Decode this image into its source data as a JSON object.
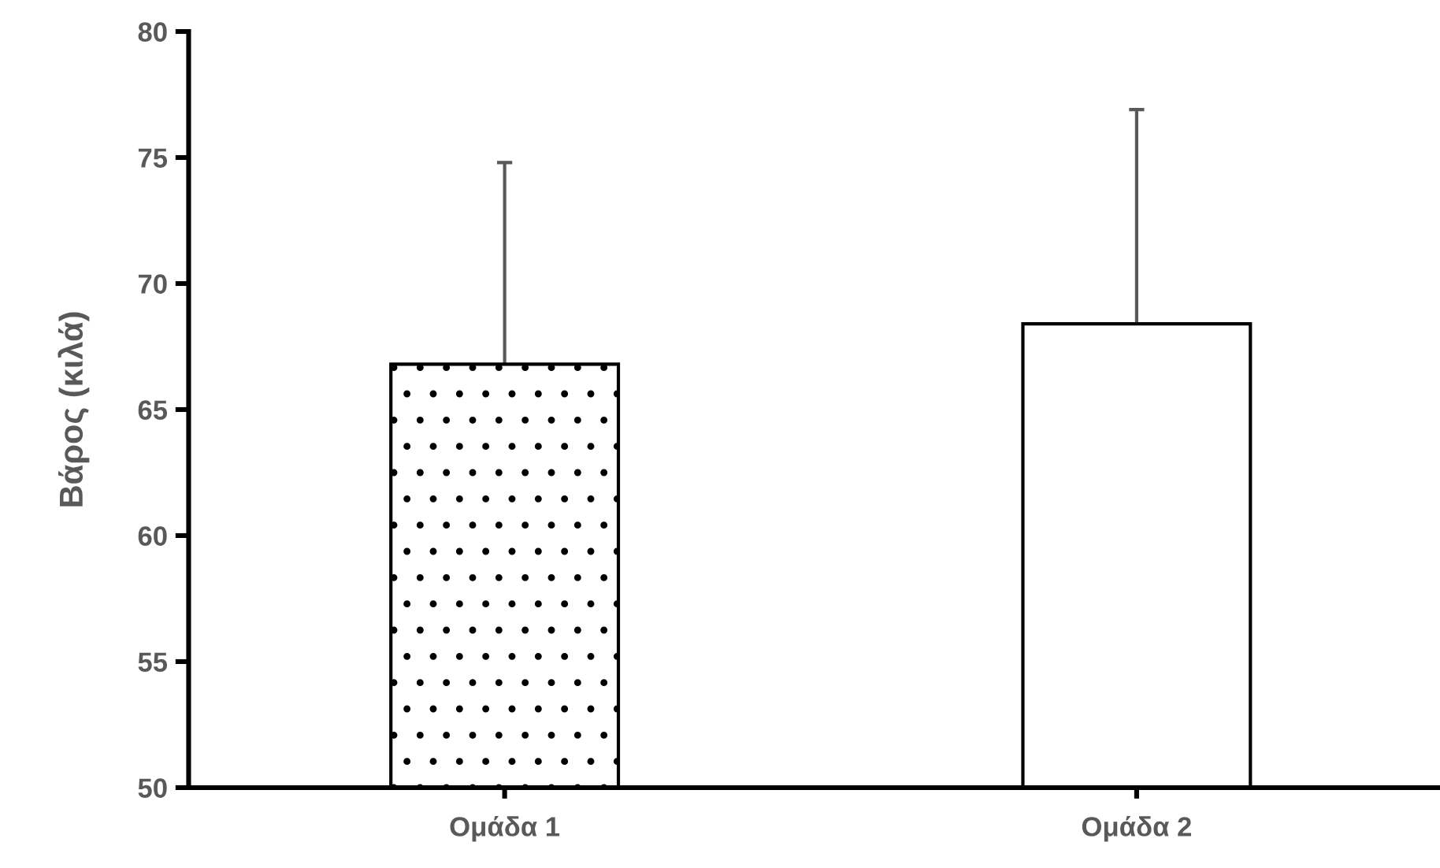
{
  "chart_data": {
    "type": "bar",
    "ylabel": "Βάρος (κιλά)",
    "categories": [
      "Ομάδα 1",
      "Ομάδα 2"
    ],
    "values": [
      66.8,
      68.4
    ],
    "colors": [
      "#ffffff",
      "#ffffff"
    ],
    "errors": [
      [
        66.8,
        74.8
      ],
      [
        68.4,
        76.9
      ]
    ],
    "ylim": [
      50,
      80
    ],
    "yticks": [
      50,
      55,
      60,
      65,
      70,
      75,
      80
    ],
    "grid": false,
    "legend": false
  }
}
